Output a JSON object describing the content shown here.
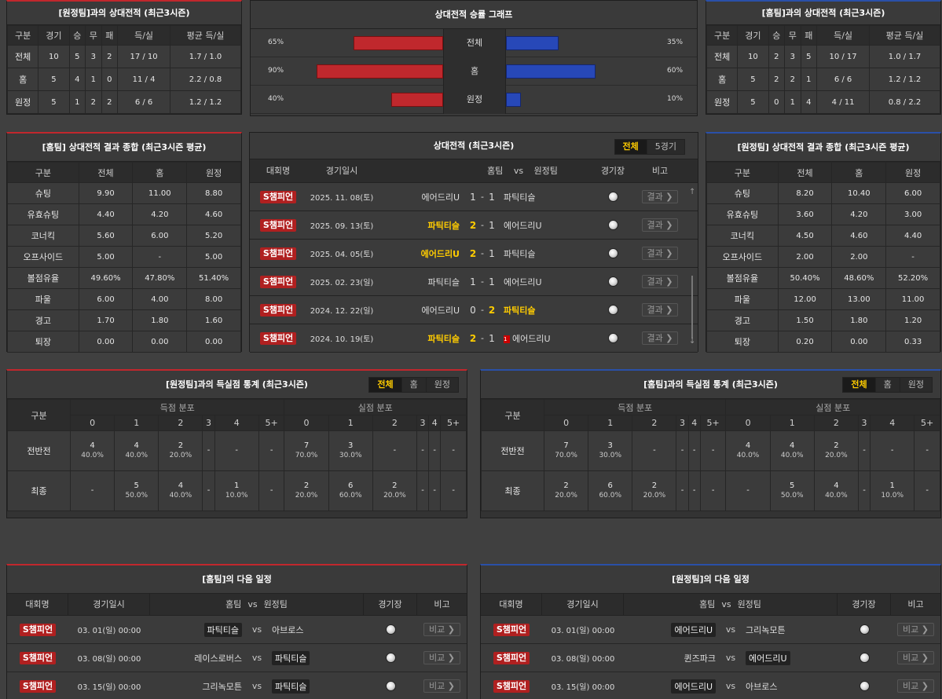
{
  "away_h2h": {
    "title": "[원정팀]과의 상대전적 (최근3시즌)",
    "headers": [
      "구분",
      "경기",
      "승",
      "무",
      "패",
      "득/실",
      "평균 득/실"
    ],
    "rows": [
      [
        "전체",
        "10",
        "5",
        "3",
        "2",
        "17 / 10",
        "1.7 / 1.0"
      ],
      [
        "홈",
        "5",
        "4",
        "1",
        "0",
        "11 / 4",
        "2.2 / 0.8"
      ],
      [
        "원정",
        "5",
        "1",
        "2",
        "2",
        "6 / 6",
        "1.2 / 1.2"
      ]
    ]
  },
  "graph": {
    "title": "상대전적 승률 그래프",
    "rows": [
      {
        "label": "전체",
        "left_pct": "65%",
        "right_pct": "35%",
        "left": 65,
        "right": 35
      },
      {
        "label": "홈",
        "left_pct": "90%",
        "right_pct": "60%",
        "left": 90,
        "right": 60
      },
      {
        "label": "원정",
        "left_pct": "40%",
        "right_pct": "10%",
        "left": 40,
        "right": 10
      }
    ]
  },
  "home_h2h": {
    "title": "[홈팀]과의 상대전적 (최근3시즌)",
    "headers": [
      "구분",
      "경기",
      "승",
      "무",
      "패",
      "득/실",
      "평균 득/실"
    ],
    "rows": [
      [
        "전체",
        "10",
        "2",
        "3",
        "5",
        "10 / 17",
        "1.0 / 1.7"
      ],
      [
        "홈",
        "5",
        "2",
        "2",
        "1",
        "6 / 6",
        "1.2 / 1.2"
      ],
      [
        "원정",
        "5",
        "0",
        "1",
        "4",
        "4 / 11",
        "0.8 / 2.2"
      ]
    ]
  },
  "home_summary": {
    "title": "[홈팀] 상대전적 결과 종합 (최근3시즌 평균)",
    "headers": [
      "구분",
      "전체",
      "홈",
      "원정"
    ],
    "rows": [
      [
        "슈팅",
        "9.90",
        "11.00",
        "8.80"
      ],
      [
        "유효슈팅",
        "4.40",
        "4.20",
        "4.60"
      ],
      [
        "코너킥",
        "5.60",
        "6.00",
        "5.20"
      ],
      [
        "오프사이드",
        "5.00",
        "-",
        "5.00"
      ],
      [
        "볼점유율",
        "49.60%",
        "47.80%",
        "51.40%"
      ],
      [
        "파울",
        "6.00",
        "4.00",
        "8.00"
      ],
      [
        "경고",
        "1.70",
        "1.80",
        "1.60"
      ],
      [
        "퇴장",
        "0.00",
        "0.00",
        "0.00"
      ]
    ]
  },
  "away_summary": {
    "title": "[원정팀] 상대전적 결과 종합 (최근3시즌 평균)",
    "headers": [
      "구분",
      "전체",
      "홈",
      "원정"
    ],
    "rows": [
      [
        "슈팅",
        "8.20",
        "10.40",
        "6.00"
      ],
      [
        "유효슈팅",
        "3.60",
        "4.20",
        "3.00"
      ],
      [
        "코너킥",
        "4.50",
        "4.60",
        "4.40"
      ],
      [
        "오프사이드",
        "2.00",
        "2.00",
        "-"
      ],
      [
        "볼점유율",
        "50.40%",
        "48.60%",
        "52.20%"
      ],
      [
        "파울",
        "12.00",
        "13.00",
        "11.00"
      ],
      [
        "경고",
        "1.50",
        "1.80",
        "1.20"
      ],
      [
        "퇴장",
        "0.20",
        "0.00",
        "0.33"
      ]
    ]
  },
  "matches": {
    "title": "상대전적 (최근3시즌)",
    "tabs": [
      "전체",
      "5경기"
    ],
    "headers": {
      "league": "대회명",
      "date": "경기일시",
      "home": "홈팀",
      "vs": "vs",
      "away": "원정팀",
      "venue": "경기장",
      "note": "비고"
    },
    "result_label": "결과 ❯",
    "rows": [
      {
        "league": "S챔피언",
        "date": "2025. 11. 08(토)",
        "home": "에어드리U",
        "hs": "1",
        "sep": "-",
        "as": "1",
        "away": "파틱티슬",
        "win": "none",
        "red": ""
      },
      {
        "league": "S챔피언",
        "date": "2025. 09. 13(토)",
        "home": "파틱티슬",
        "hs": "2",
        "sep": "-",
        "as": "1",
        "away": "에어드리U",
        "win": "home",
        "red": ""
      },
      {
        "league": "S챔피언",
        "date": "2025. 04. 05(토)",
        "home": "에어드리U",
        "hs": "2",
        "sep": "-",
        "as": "1",
        "away": "파틱티슬",
        "win": "home",
        "red": ""
      },
      {
        "league": "S챔피언",
        "date": "2025. 02. 23(일)",
        "home": "파틱티슬",
        "hs": "1",
        "sep": "-",
        "as": "1",
        "away": "에어드리U",
        "win": "none",
        "red": ""
      },
      {
        "league": "S챔피언",
        "date": "2024. 12. 22(일)",
        "home": "에어드리U",
        "hs": "0",
        "sep": "-",
        "as": "2",
        "away": "파틱티슬",
        "win": "away",
        "red": ""
      },
      {
        "league": "S챔피언",
        "date": "2024. 10. 19(토)",
        "home": "파틱티슬",
        "hs": "2",
        "sep": "-",
        "as": "1",
        "away": "에어드리U",
        "win": "home",
        "red": "1"
      }
    ]
  },
  "away_goals": {
    "title": "[원정팀]과의 득실점 통계 (최근3시즌)",
    "tabs": [
      "전체",
      "홈",
      "원정"
    ],
    "label_col": "구분",
    "scored": "득점 분포",
    "conceded": "실점 분포",
    "buckets": [
      "0",
      "1",
      "2",
      "3",
      "4",
      "5+"
    ],
    "rows": [
      {
        "label": "전반전",
        "cells": [
          [
            "4",
            "40.0%"
          ],
          [
            "4",
            "40.0%"
          ],
          [
            "2",
            "20.0%"
          ],
          [
            "-",
            ""
          ],
          [
            "-",
            ""
          ],
          [
            "-",
            ""
          ],
          [
            "7",
            "70.0%"
          ],
          [
            "3",
            "30.0%"
          ],
          [
            "-",
            ""
          ],
          [
            "-",
            ""
          ],
          [
            "-",
            ""
          ],
          [
            "-",
            ""
          ]
        ]
      },
      {
        "label": "최종",
        "cells": [
          [
            "-",
            ""
          ],
          [
            "5",
            "50.0%"
          ],
          [
            "4",
            "40.0%"
          ],
          [
            "-",
            ""
          ],
          [
            "1",
            "10.0%"
          ],
          [
            "-",
            ""
          ],
          [
            "2",
            "20.0%"
          ],
          [
            "6",
            "60.0%"
          ],
          [
            "2",
            "20.0%"
          ],
          [
            "-",
            ""
          ],
          [
            "-",
            ""
          ],
          [
            "-",
            ""
          ]
        ]
      }
    ]
  },
  "home_goals": {
    "title": "[홈팀]과의 득실점 통계 (최근3시즌)",
    "tabs": [
      "전체",
      "홈",
      "원정"
    ],
    "label_col": "구분",
    "scored": "득점 분포",
    "conceded": "실점 분포",
    "buckets": [
      "0",
      "1",
      "2",
      "3",
      "4",
      "5+"
    ],
    "rows": [
      {
        "label": "전반전",
        "cells": [
          [
            "7",
            "70.0%"
          ],
          [
            "3",
            "30.0%"
          ],
          [
            "-",
            ""
          ],
          [
            "-",
            ""
          ],
          [
            "-",
            ""
          ],
          [
            "-",
            ""
          ],
          [
            "4",
            "40.0%"
          ],
          [
            "4",
            "40.0%"
          ],
          [
            "2",
            "20.0%"
          ],
          [
            "-",
            ""
          ],
          [
            "-",
            ""
          ],
          [
            "-",
            ""
          ]
        ]
      },
      {
        "label": "최종",
        "cells": [
          [
            "2",
            "20.0%"
          ],
          [
            "6",
            "60.0%"
          ],
          [
            "2",
            "20.0%"
          ],
          [
            "-",
            ""
          ],
          [
            "-",
            ""
          ],
          [
            "-",
            ""
          ],
          [
            "-",
            ""
          ],
          [
            "5",
            "50.0%"
          ],
          [
            "4",
            "40.0%"
          ],
          [
            "-",
            ""
          ],
          [
            "1",
            "10.0%"
          ],
          [
            "-",
            ""
          ]
        ]
      }
    ]
  },
  "home_next": {
    "title": "[홈팀]의 다음 일정",
    "headers": {
      "league": "대회명",
      "date": "경기일시",
      "home": "홈팀",
      "vs": "vs",
      "away": "원정팀",
      "venue": "경기장",
      "note": "비고"
    },
    "compare_label": "비교 ❯",
    "rows": [
      {
        "league": "S챔피언",
        "date": "03. 01(일) 00:00",
        "home": "파틱티슬",
        "away": "아브로스",
        "hl": "home"
      },
      {
        "league": "S챔피언",
        "date": "03. 08(일) 00:00",
        "home": "레이스로버스",
        "away": "파틱티슬",
        "hl": "away"
      },
      {
        "league": "S챔피언",
        "date": "03. 15(일) 00:00",
        "home": "그리녹모튼",
        "away": "파틱티슬",
        "hl": "away"
      }
    ]
  },
  "away_next": {
    "title": "[원정팀]의 다음 일정",
    "headers": {
      "league": "대회명",
      "date": "경기일시",
      "home": "홈팀",
      "vs": "vs",
      "away": "원정팀",
      "venue": "경기장",
      "note": "비고"
    },
    "compare_label": "비교 ❯",
    "rows": [
      {
        "league": "S챔피언",
        "date": "03. 01(일) 00:00",
        "home": "에어드리U",
        "away": "그리녹모튼",
        "hl": "home"
      },
      {
        "league": "S챔피언",
        "date": "03. 08(일) 00:00",
        "home": "퀸즈파크",
        "away": "에어드리U",
        "hl": "away"
      },
      {
        "league": "S챔피언",
        "date": "03. 15(일) 00:00",
        "home": "에어드리U",
        "away": "아브로스",
        "hl": "home"
      }
    ]
  }
}
